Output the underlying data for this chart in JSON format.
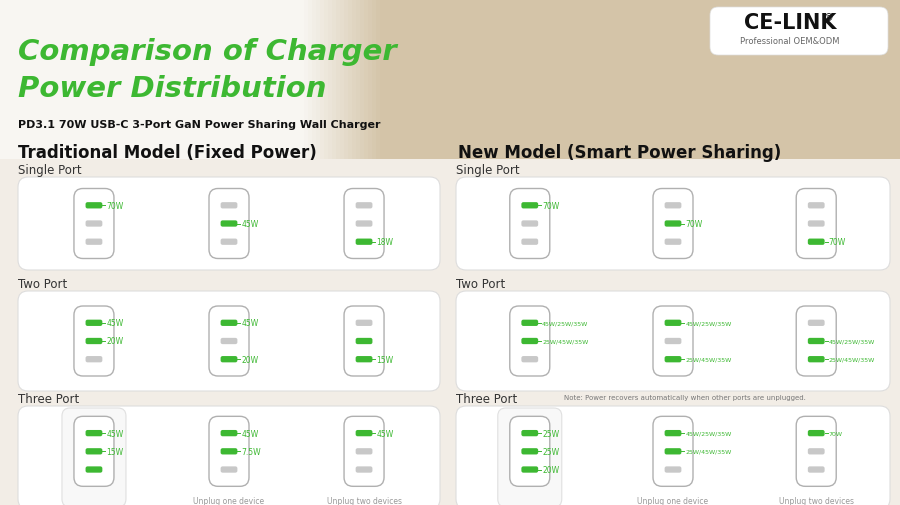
{
  "title_line1": "Comparison of Charger",
  "title_line2": "Power Distribution",
  "subtitle": "PD3.1 70W USB-C 3-Port GaN Power Sharing Wall Charger",
  "brand_name": "CE-LINK",
  "brand_reg": "®",
  "brand_sub": "Professional OEM&ODM",
  "left_section_title": "Traditional Model (Fixed Power)",
  "right_section_title": "New Model (Smart Power Sharing)",
  "bg_top": "#f2ede5",
  "bg_bottom": "#f7f5f0",
  "photo_bg": "#c8b99a",
  "card_color": "#ffffff",
  "green_color": "#3db832",
  "port_inactive_color": "#c8c8c8",
  "label_color": "#3db832",
  "sub_label_color": "#999999",
  "section_title_color": "#1a1a1a",
  "note_color": "#888888",
  "left": {
    "single_port": {
      "label": "Single Port",
      "chargers": [
        {
          "ports": [
            1,
            0,
            0
          ],
          "labels": [
            "70W",
            null,
            null
          ]
        },
        {
          "ports": [
            0,
            1,
            0
          ],
          "labels": [
            null,
            "45W",
            null
          ]
        },
        {
          "ports": [
            0,
            0,
            1
          ],
          "labels": [
            null,
            null,
            "18W"
          ]
        }
      ]
    },
    "two_port": {
      "label": "Two Port",
      "chargers": [
        {
          "ports": [
            1,
            1,
            0
          ],
          "labels": [
            "45W",
            "20W",
            null
          ]
        },
        {
          "ports": [
            1,
            0,
            1
          ],
          "labels": [
            "45W",
            null,
            "20W"
          ]
        },
        {
          "ports": [
            0,
            1,
            1
          ],
          "labels": [
            null,
            null,
            "15W"
          ]
        }
      ]
    },
    "three_port": {
      "label": "Three Port",
      "chargers": [
        {
          "ports": [
            1,
            1,
            1
          ],
          "labels": [
            "45W",
            "15W",
            null
          ],
          "highlight": true
        },
        {
          "ports": [
            1,
            1,
            0
          ],
          "labels": [
            "45W",
            "7.5W",
            null
          ],
          "sub": "Unplug one device"
        },
        {
          "ports": [
            1,
            0,
            0
          ],
          "labels": [
            "45W",
            null,
            null
          ],
          "sub": "Unplug two devices"
        }
      ]
    }
  },
  "right": {
    "single_port": {
      "label": "Single Port",
      "chargers": [
        {
          "ports": [
            1,
            0,
            0
          ],
          "labels": [
            "70W",
            null,
            null
          ]
        },
        {
          "ports": [
            0,
            1,
            0
          ],
          "labels": [
            null,
            "70W",
            null
          ]
        },
        {
          "ports": [
            0,
            0,
            1
          ],
          "labels": [
            null,
            null,
            "70W"
          ]
        }
      ]
    },
    "two_port": {
      "label": "Two Port",
      "chargers": [
        {
          "ports": [
            1,
            1,
            0
          ],
          "labels": [
            "45W/25W/35W",
            "25W/45W/35W",
            null
          ]
        },
        {
          "ports": [
            1,
            0,
            1
          ],
          "labels": [
            "45W/25W/35W",
            null,
            "25W/45W/35W"
          ]
        },
        {
          "ports": [
            0,
            1,
            1
          ],
          "labels": [
            null,
            "45W/25W/35W",
            "25W/45W/35W"
          ]
        }
      ]
    },
    "three_port": {
      "label": "Three Port",
      "note": "Note: Power recovers automatically when other ports are unplugged.",
      "chargers": [
        {
          "ports": [
            1,
            1,
            1
          ],
          "labels": [
            "25W",
            "25W",
            "20W"
          ],
          "highlight": true
        },
        {
          "ports": [
            1,
            1,
            0
          ],
          "labels": [
            "45W/25W/35W",
            "25W/45W/35W",
            null
          ],
          "sub": "Unplug one device"
        },
        {
          "ports": [
            1,
            0,
            0
          ],
          "labels": [
            "70W",
            null,
            null
          ],
          "sub": "Unplug two devices"
        }
      ]
    }
  }
}
